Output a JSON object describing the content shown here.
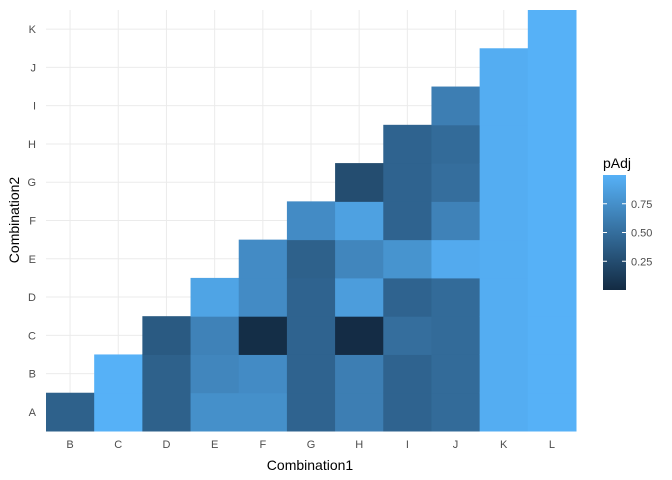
{
  "chart_data": {
    "type": "heatmap",
    "xlabel": "Combination1",
    "ylabel": "Combination2",
    "x_categories": [
      "B",
      "C",
      "D",
      "E",
      "F",
      "G",
      "H",
      "I",
      "J",
      "K",
      "L"
    ],
    "y_categories": [
      "A",
      "B",
      "C",
      "D",
      "E",
      "F",
      "G",
      "H",
      "I",
      "J",
      "K"
    ],
    "legend_title": "pAdj",
    "legend_breaks": [
      0.25,
      0.5,
      0.75
    ],
    "legend_break_labels": [
      "0.25",
      "0.50",
      "0.75"
    ],
    "value_range": [
      0.0,
      1.0
    ],
    "colors": {
      "low": "#132B43",
      "high": "#56B1F7",
      "grid": "#ebebeb",
      "background": "#ffffff"
    },
    "grid": true,
    "legend_position": "right",
    "cells": [
      {
        "x": "B",
        "y": "A",
        "value": 0.4
      },
      {
        "x": "C",
        "y": "A",
        "value": 1.0
      },
      {
        "x": "C",
        "y": "B",
        "value": 1.0
      },
      {
        "x": "D",
        "y": "A",
        "value": 0.4
      },
      {
        "x": "D",
        "y": "B",
        "value": 0.4
      },
      {
        "x": "D",
        "y": "C",
        "value": 0.35
      },
      {
        "x": "E",
        "y": "A",
        "value": 0.75
      },
      {
        "x": "E",
        "y": "B",
        "value": 0.68
      },
      {
        "x": "E",
        "y": "C",
        "value": 0.65
      },
      {
        "x": "E",
        "y": "D",
        "value": 0.9
      },
      {
        "x": "F",
        "y": "A",
        "value": 0.75
      },
      {
        "x": "F",
        "y": "B",
        "value": 0.72
      },
      {
        "x": "F",
        "y": "C",
        "value": 0.02
      },
      {
        "x": "F",
        "y": "D",
        "value": 0.72
      },
      {
        "x": "F",
        "y": "E",
        "value": 0.72
      },
      {
        "x": "G",
        "y": "A",
        "value": 0.42
      },
      {
        "x": "G",
        "y": "B",
        "value": 0.42
      },
      {
        "x": "G",
        "y": "C",
        "value": 0.42
      },
      {
        "x": "G",
        "y": "D",
        "value": 0.42
      },
      {
        "x": "G",
        "y": "E",
        "value": 0.4
      },
      {
        "x": "G",
        "y": "F",
        "value": 0.72
      },
      {
        "x": "H",
        "y": "A",
        "value": 0.62
      },
      {
        "x": "H",
        "y": "B",
        "value": 0.62
      },
      {
        "x": "H",
        "y": "C",
        "value": 0.01
      },
      {
        "x": "H",
        "y": "D",
        "value": 0.85
      },
      {
        "x": "H",
        "y": "E",
        "value": 0.68
      },
      {
        "x": "H",
        "y": "F",
        "value": 0.88
      },
      {
        "x": "H",
        "y": "G",
        "value": 0.25
      },
      {
        "x": "I",
        "y": "A",
        "value": 0.42
      },
      {
        "x": "I",
        "y": "B",
        "value": 0.42
      },
      {
        "x": "I",
        "y": "C",
        "value": 0.5
      },
      {
        "x": "I",
        "y": "D",
        "value": 0.42
      },
      {
        "x": "I",
        "y": "E",
        "value": 0.78
      },
      {
        "x": "I",
        "y": "F",
        "value": 0.42
      },
      {
        "x": "I",
        "y": "G",
        "value": 0.42
      },
      {
        "x": "I",
        "y": "H",
        "value": 0.42
      },
      {
        "x": "J",
        "y": "A",
        "value": 0.48
      },
      {
        "x": "J",
        "y": "B",
        "value": 0.48
      },
      {
        "x": "J",
        "y": "C",
        "value": 0.48
      },
      {
        "x": "J",
        "y": "D",
        "value": 0.48
      },
      {
        "x": "J",
        "y": "E",
        "value": 0.95
      },
      {
        "x": "J",
        "y": "F",
        "value": 0.65
      },
      {
        "x": "J",
        "y": "G",
        "value": 0.5
      },
      {
        "x": "J",
        "y": "H",
        "value": 0.48
      },
      {
        "x": "J",
        "y": "I",
        "value": 0.62
      },
      {
        "x": "K",
        "y": "A",
        "value": 0.97
      },
      {
        "x": "K",
        "y": "B",
        "value": 0.97
      },
      {
        "x": "K",
        "y": "C",
        "value": 0.97
      },
      {
        "x": "K",
        "y": "D",
        "value": 0.97
      },
      {
        "x": "K",
        "y": "E",
        "value": 0.97
      },
      {
        "x": "K",
        "y": "F",
        "value": 0.97
      },
      {
        "x": "K",
        "y": "G",
        "value": 0.97
      },
      {
        "x": "K",
        "y": "H",
        "value": 0.97
      },
      {
        "x": "K",
        "y": "I",
        "value": 0.97
      },
      {
        "x": "K",
        "y": "J",
        "value": 0.97
      },
      {
        "x": "L",
        "y": "A",
        "value": 1.0
      },
      {
        "x": "L",
        "y": "B",
        "value": 1.0
      },
      {
        "x": "L",
        "y": "C",
        "value": 1.0
      },
      {
        "x": "L",
        "y": "D",
        "value": 1.0
      },
      {
        "x": "L",
        "y": "E",
        "value": 1.0
      },
      {
        "x": "L",
        "y": "F",
        "value": 1.0
      },
      {
        "x": "L",
        "y": "G",
        "value": 1.0
      },
      {
        "x": "L",
        "y": "H",
        "value": 1.0
      },
      {
        "x": "L",
        "y": "I",
        "value": 1.0
      },
      {
        "x": "L",
        "y": "J",
        "value": 1.0
      },
      {
        "x": "L",
        "y": "K",
        "value": 1.0
      }
    ]
  }
}
